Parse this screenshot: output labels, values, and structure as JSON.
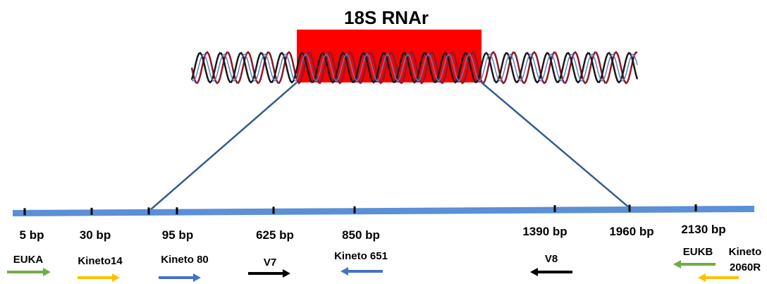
{
  "title": "18S  RNAr",
  "markers": [
    {
      "label": "5 bp"
    },
    {
      "label": "30 bp"
    },
    {
      "label": "95 bp"
    },
    {
      "label": "625 bp"
    },
    {
      "label": "850 bp"
    },
    {
      "label": "1390 bp"
    },
    {
      "label": "1960 bp"
    },
    {
      "label": "2130 bp"
    }
  ],
  "primers": [
    {
      "lines": [
        "EUKA"
      ],
      "direction": "right",
      "color": "#70ad47"
    },
    {
      "lines": [
        "Kineto14"
      ],
      "direction": "right",
      "color": "#ffc000"
    },
    {
      "lines": [
        "Kineto 80"
      ],
      "direction": "right",
      "color": "#4472c4"
    },
    {
      "lines": [
        "V7"
      ],
      "direction": "right",
      "color": "#000000"
    },
    {
      "lines": [
        "Kineto 651"
      ],
      "direction": "left",
      "color": "#4472c4"
    },
    {
      "lines": [
        "V8"
      ],
      "direction": "left",
      "color": "#000000"
    },
    {
      "lines": [
        "EUKB"
      ],
      "direction": "left",
      "color": "#70ad47"
    },
    {
      "lines": [
        "Kineto",
        "2060R"
      ],
      "direction": "left",
      "color": "#ffc000"
    }
  ]
}
